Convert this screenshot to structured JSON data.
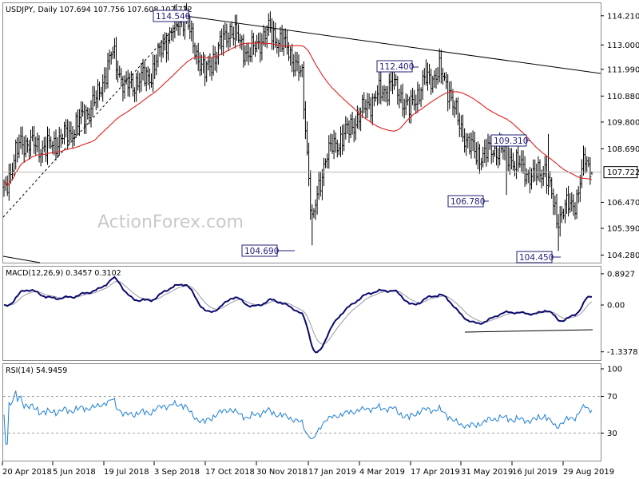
{
  "chart_data": [
    {
      "type": "candlestick",
      "panel": "price",
      "header": "USDJPY, Daily  107.694 107.756 107.608 107.722",
      "watermark": "ActionForex.com",
      "ylim": [
        104.0,
        114.7
      ],
      "yticks": [
        "114.210",
        "113.000",
        "111.990",
        "110.880",
        "109.800",
        "108.690",
        "107.722",
        "106.470",
        "105.390",
        "104.280"
      ],
      "current_price": 107.722,
      "colors": {
        "bars": "#000000",
        "ma": "#e02020",
        "trendline": "#000000",
        "price_line": "#b8b8b8",
        "label_border": "#1f1f7a"
      },
      "annotations": [
        {
          "text": "114.540",
          "value": 114.54
        },
        {
          "text": "104.690",
          "value": 104.69
        },
        {
          "text": "112.400",
          "value": 112.4
        },
        {
          "text": "106.780",
          "value": 106.78
        },
        {
          "text": "109.310",
          "value": 109.31
        },
        {
          "text": "104.450",
          "value": 104.45
        }
      ]
    },
    {
      "type": "line",
      "panel": "macd",
      "header": "MACD(12,26,9) 0.3457 0.3102",
      "ylim": [
        -1.55,
        1.05
      ],
      "yticks": [
        "0.8927",
        "0.00",
        "-1.3378"
      ],
      "colors": {
        "macd": "#0a0a6e",
        "signal": "#9a9aa8",
        "support": "#000000"
      }
    },
    {
      "type": "line",
      "panel": "rsi",
      "header": "RSI(14) 54.9459",
      "ylim": [
        0,
        100
      ],
      "yticks": [
        "100",
        "70",
        "30"
      ],
      "colors": {
        "rsi": "#1e7fd6",
        "levels": "#a0a0a0"
      }
    }
  ],
  "x_axis": {
    "tick_labels": [
      "20 Apr 2018",
      "5 Jun 2018",
      "19 Jul 2018",
      "3 Sep 2018",
      "17 Oct 2018",
      "30 Nov 2018",
      "17 Jan 2019",
      "4 Mar 2019",
      "17 Apr 2019",
      "31 May 2019",
      "16 Jul 2019",
      "29 Aug 2019"
    ]
  }
}
